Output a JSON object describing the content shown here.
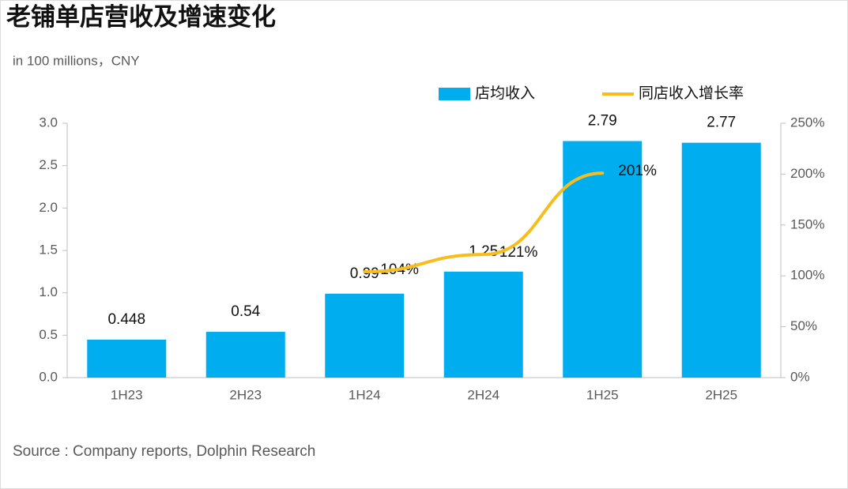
{
  "chart_data": {
    "type": "bar",
    "title": "老铺单店营收及增速变化",
    "subtitle": "in 100 millions，CNY",
    "source": "Source : Company reports, Dolphin Research",
    "categories": [
      "1H23",
      "2H23",
      "1H24",
      "2H24",
      "1H25",
      "2H25"
    ],
    "series": [
      {
        "name": "店均收入",
        "type": "bar",
        "color": "#00aeef",
        "values": [
          0.448,
          0.54,
          0.99,
          1.25,
          2.79,
          2.77
        ]
      },
      {
        "name": "同店收入增长率",
        "type": "line",
        "axis": "y2",
        "color": "#f7bd1b",
        "values": [
          null,
          null,
          104,
          121,
          201,
          null
        ],
        "value_labels": [
          null,
          null,
          "104%",
          "121%",
          "201%",
          null
        ]
      }
    ],
    "ylim": [
      0,
      3
    ],
    "yticks": [
      {
        "value": 0,
        "label": "0.0"
      },
      0.5,
      {
        "value": 1,
        "label": "1.0"
      },
      1.5,
      {
        "value": 2,
        "label": "2.0"
      },
      2.5,
      {
        "value": 3,
        "label": "3.0"
      }
    ],
    "y2lim": [
      0,
      250
    ],
    "y2ticks": [
      {
        "value": 0,
        "label": "0%"
      },
      {
        "value": 50,
        "label": "50%"
      },
      {
        "value": 100,
        "label": "100%"
      },
      {
        "value": 150,
        "label": "150%"
      },
      {
        "value": 200,
        "label": "200%"
      },
      {
        "value": 250,
        "label": "250%"
      }
    ],
    "grid": false,
    "legend": "top-right"
  }
}
